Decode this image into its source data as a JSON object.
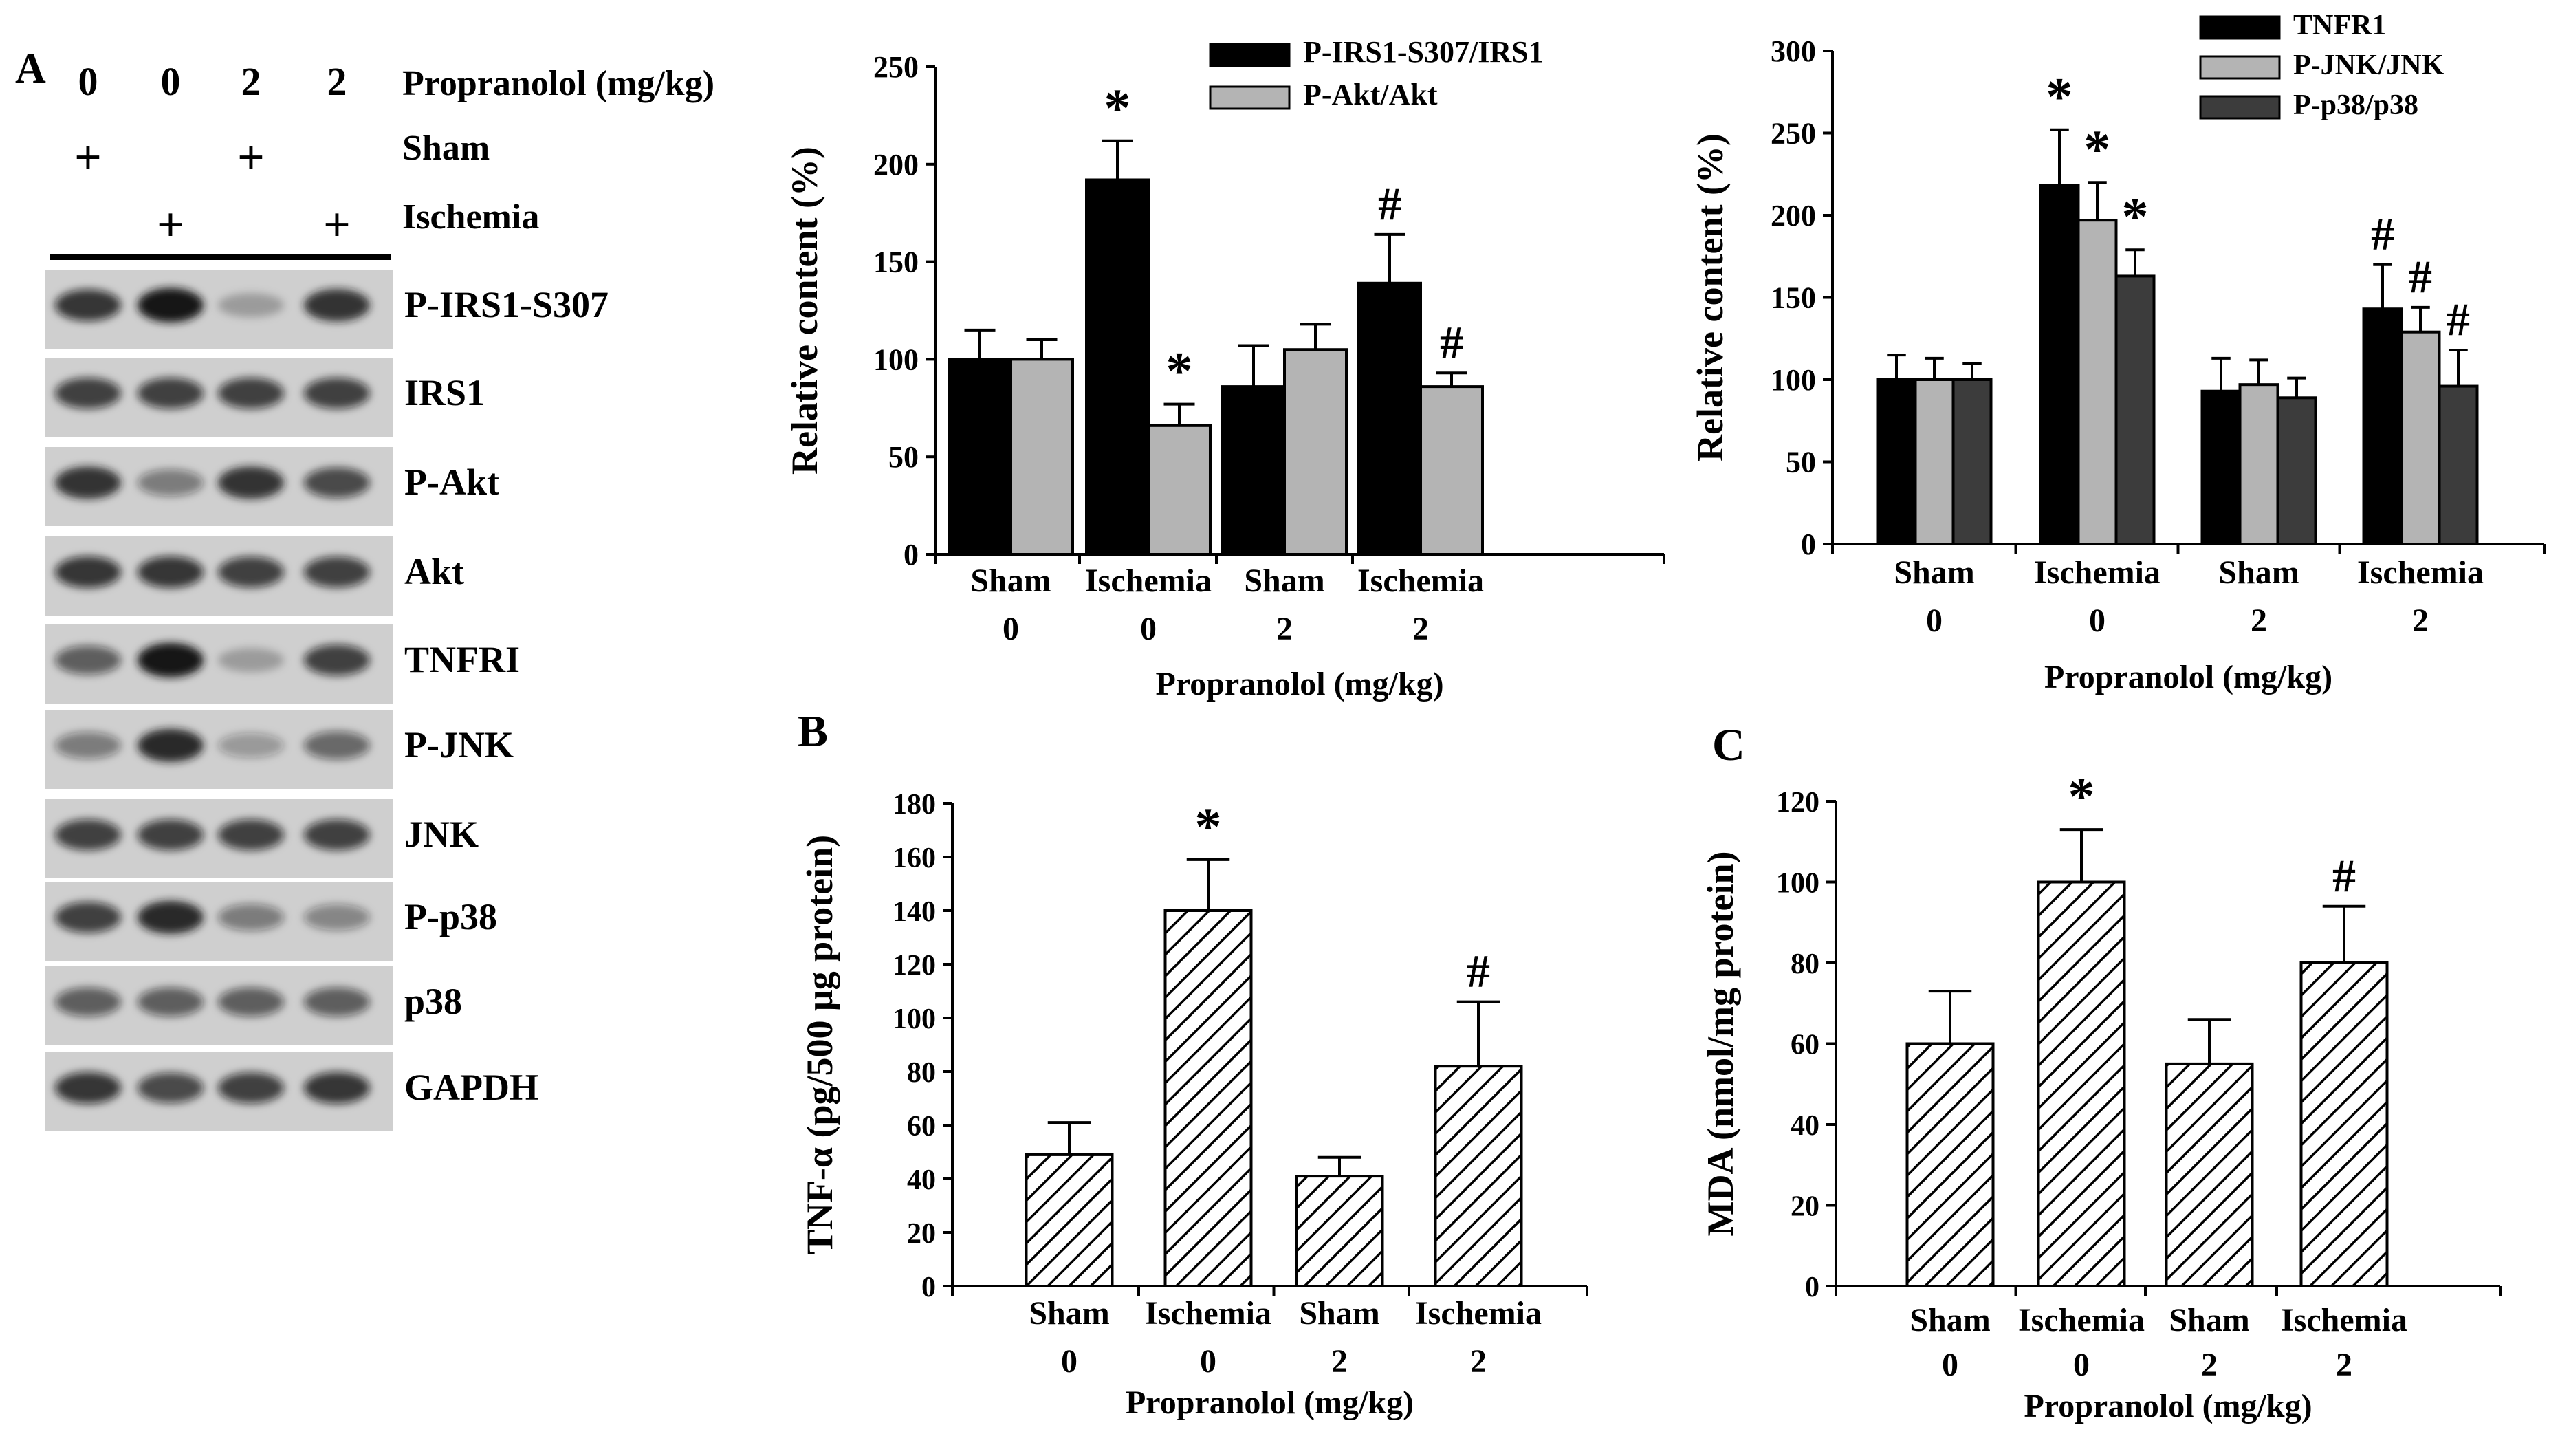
{
  "panel_a": {
    "letter": "A",
    "doses": [
      "0",
      "0",
      "2",
      "2"
    ],
    "dose_label": "Propranolol (mg/kg)",
    "sham_label": "Sham",
    "ischemia_label": "Ischemia",
    "plus": "+",
    "sham_marks": [
      true,
      false,
      true,
      false
    ],
    "ischemia_marks": [
      false,
      true,
      false,
      true
    ],
    "blot_labels": [
      "P-IRS1-S307",
      "IRS1",
      "P-Akt",
      "Akt",
      "TNFRI",
      "P-JNK",
      "JNK",
      "P-p38",
      "p38",
      "GAPDH"
    ]
  },
  "panel_b_letter": "B",
  "panel_c_letter": "C",
  "colors": {
    "black": "#000000",
    "light_gray": "#b4b4b4",
    "dark_gray": "#3c3c3c",
    "white": "#ffffff"
  },
  "chart_data": [
    {
      "id": "insulin",
      "type": "bar",
      "title": "",
      "ylabel": "Relative content (%)",
      "xlabel": "Propranolol (mg/kg)",
      "ylim": [
        0,
        250
      ],
      "yticks": [
        0,
        50,
        100,
        150,
        200,
        250
      ],
      "categories": [
        "Sham",
        "Ischemia",
        "Sham",
        "Ischemia"
      ],
      "doses": [
        "0",
        "0",
        "2",
        "2"
      ],
      "legend_position": "top-right",
      "series": [
        {
          "name": "P-IRS1-S307/IRS1",
          "color": "#000000",
          "values": [
            100,
            192,
            86,
            139
          ],
          "errors": [
            15,
            20,
            21,
            25
          ],
          "marks": [
            "",
            "*",
            "",
            "#"
          ]
        },
        {
          "name": "P-Akt/Akt",
          "color": "#b4b4b4",
          "values": [
            100,
            66,
            105,
            86
          ],
          "errors": [
            10,
            11,
            13,
            7
          ],
          "marks": [
            "",
            "*",
            "",
            "#"
          ]
        }
      ]
    },
    {
      "id": "stress",
      "type": "bar",
      "title": "",
      "ylabel": "Relative content (%)",
      "xlabel": "Propranolol (mg/kg)",
      "ylim": [
        0,
        300
      ],
      "yticks": [
        0,
        50,
        100,
        150,
        200,
        250,
        300
      ],
      "categories": [
        "Sham",
        "Ischemia",
        "Sham",
        "Ischemia"
      ],
      "doses": [
        "0",
        "0",
        "2",
        "2"
      ],
      "legend_position": "top-right",
      "series": [
        {
          "name": "TNFR1",
          "color": "#000000",
          "values": [
            100,
            218,
            93,
            143
          ],
          "errors": [
            15,
            34,
            20,
            27
          ],
          "marks": [
            "",
            "*",
            "",
            "#"
          ]
        },
        {
          "name": "P-JNK/JNK",
          "color": "#b4b4b4",
          "values": [
            100,
            197,
            97,
            129
          ],
          "errors": [
            13,
            23,
            15,
            15
          ],
          "marks": [
            "",
            "*",
            "",
            "#"
          ]
        },
        {
          "name": "P-p38/p38",
          "color": "#3c3c3c",
          "values": [
            100,
            163,
            89,
            96
          ],
          "errors": [
            10,
            16,
            12,
            22
          ],
          "marks": [
            "",
            "*",
            "",
            "#"
          ]
        }
      ]
    },
    {
      "id": "tnf",
      "type": "bar",
      "title": "",
      "ylabel": "TNF-α (pg/500 μg protein)",
      "xlabel": "Propranolol (mg/kg)",
      "ylim": [
        0,
        180
      ],
      "yticks": [
        0,
        20,
        40,
        60,
        80,
        100,
        120,
        140,
        160,
        180
      ],
      "categories": [
        "Sham",
        "Ischemia",
        "Sham",
        "Ischemia"
      ],
      "doses": [
        "0",
        "0",
        "2",
        "2"
      ],
      "pattern": "diagonal-hatch",
      "series": [
        {
          "name": "TNF-α",
          "color": "#000000",
          "values": [
            49,
            140,
            41,
            82
          ],
          "errors": [
            12,
            19,
            7,
            24
          ],
          "marks": [
            "",
            "*",
            "",
            "#"
          ]
        }
      ]
    },
    {
      "id": "mda",
      "type": "bar",
      "title": "",
      "ylabel": "MDA (nmol/mg protein)",
      "xlabel": "Propranolol (mg/kg)",
      "ylim": [
        0,
        120
      ],
      "yticks": [
        0,
        20,
        40,
        60,
        80,
        100,
        120
      ],
      "categories": [
        "Sham",
        "Ischemia",
        "Sham",
        "Ischemia"
      ],
      "doses": [
        "0",
        "0",
        "2",
        "2"
      ],
      "pattern": "diagonal-hatch",
      "series": [
        {
          "name": "MDA",
          "color": "#000000",
          "values": [
            60,
            100,
            55,
            80
          ],
          "errors": [
            13,
            13,
            11,
            14
          ],
          "marks": [
            "",
            "*",
            "",
            "#"
          ]
        }
      ]
    }
  ]
}
